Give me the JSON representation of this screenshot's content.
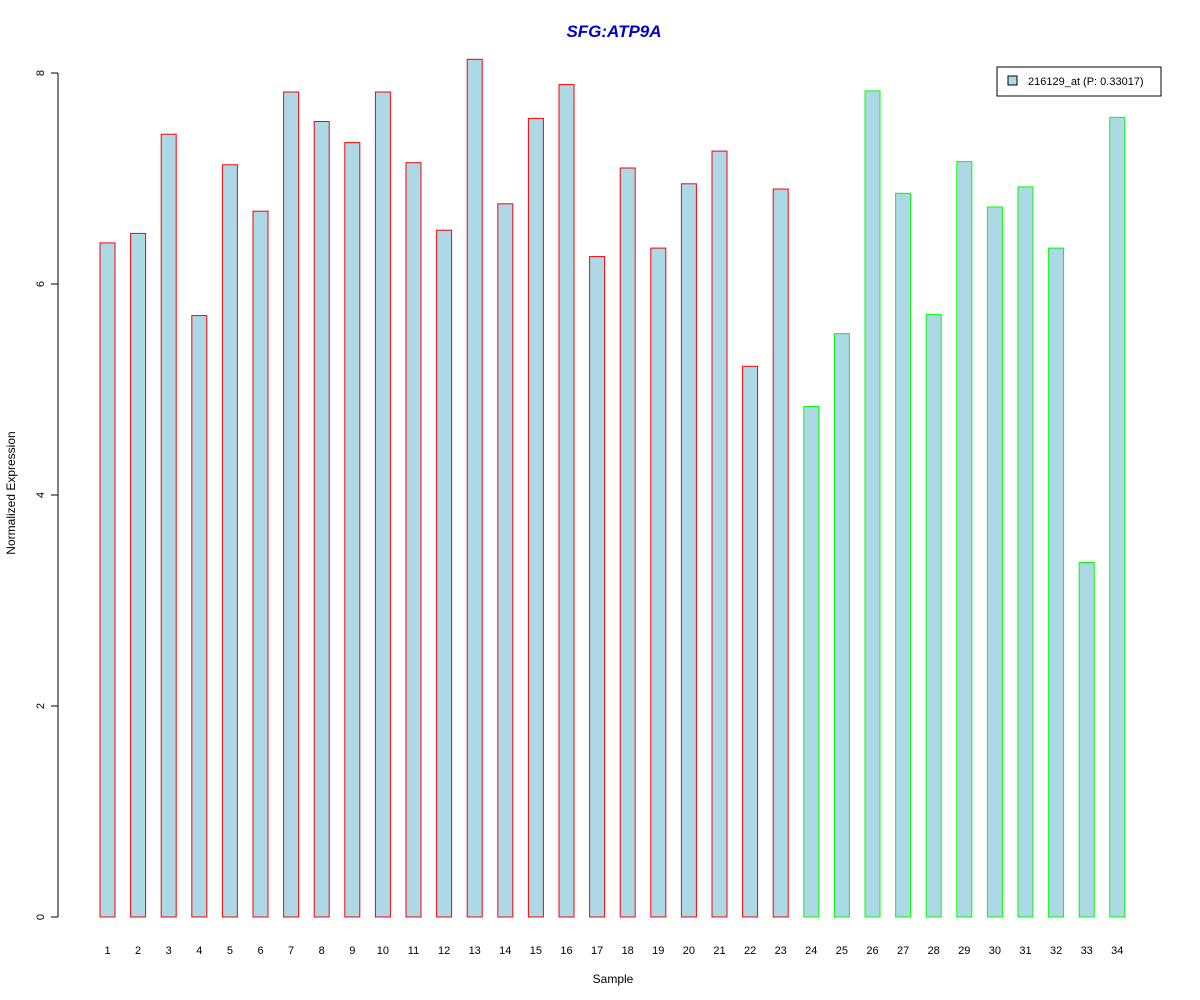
{
  "chart_data": {
    "type": "bar",
    "title": "SFG:ATP9A",
    "xlabel": "Sample",
    "ylabel": "Normalized Expression",
    "ylim": [
      0,
      8.15
    ],
    "yticks": [
      0,
      2,
      4,
      6,
      8
    ],
    "grid": false,
    "legend": {
      "placement": "top-right",
      "entries": [
        "216129_at (P: 0.33017)"
      ]
    },
    "categories": [
      "1",
      "2",
      "3",
      "4",
      "5",
      "6",
      "7",
      "8",
      "9",
      "10",
      "11",
      "12",
      "13",
      "14",
      "15",
      "16",
      "17",
      "18",
      "19",
      "20",
      "21",
      "22",
      "23",
      "24",
      "25",
      "26",
      "27",
      "28",
      "29",
      "30",
      "31",
      "32",
      "33",
      "34"
    ],
    "values": [
      6.39,
      6.48,
      7.42,
      5.7,
      7.13,
      6.69,
      7.82,
      7.54,
      7.34,
      7.82,
      7.15,
      6.51,
      8.13,
      6.76,
      7.57,
      7.89,
      6.26,
      7.1,
      6.34,
      6.95,
      7.26,
      5.22,
      6.9,
      4.84,
      5.53,
      7.83,
      6.86,
      5.71,
      7.16,
      6.73,
      6.92,
      6.34,
      3.36,
      7.58
    ],
    "groups": [
      "red",
      "red",
      "red",
      "red",
      "red",
      "red",
      "red",
      "red",
      "red",
      "red",
      "red",
      "red",
      "red",
      "red",
      "red",
      "red",
      "red",
      "red",
      "red",
      "red",
      "red",
      "red",
      "red",
      "green",
      "green",
      "green",
      "green",
      "green",
      "green",
      "green",
      "green",
      "green",
      "green",
      "green"
    ],
    "colors": {
      "bar_fill": "#add8e6",
      "border_red": "#ff0000",
      "border_green": "#00ff00",
      "title": "#0000cc",
      "axis": "#000000"
    }
  }
}
